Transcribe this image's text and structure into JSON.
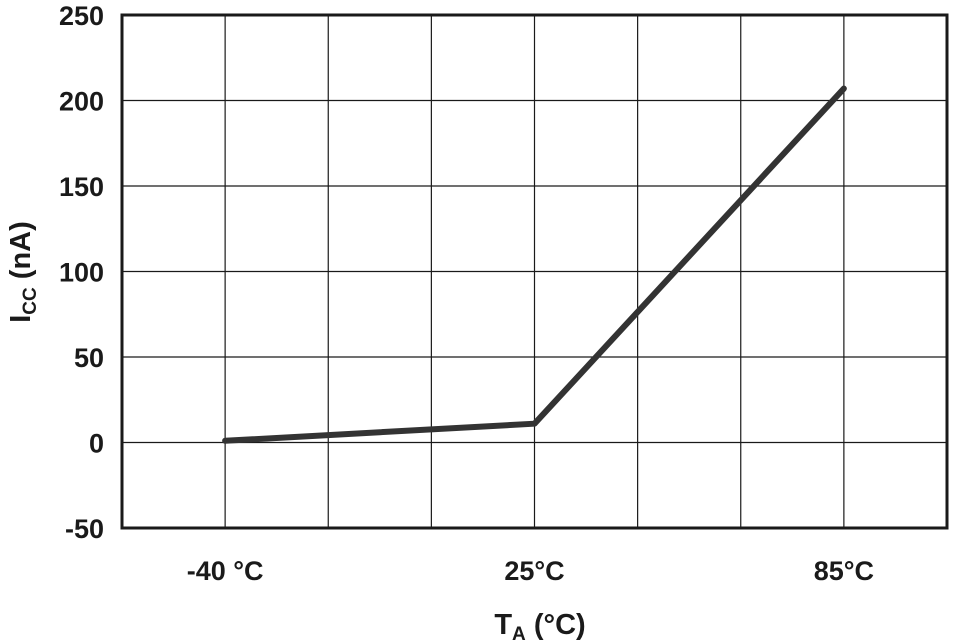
{
  "chart_data": {
    "type": "line",
    "x_categories": [
      "-40 °C",
      "",
      "",
      "25°C",
      "",
      "",
      "85°C"
    ],
    "x_labels": [
      {
        "text": "-40 °C",
        "index": 0
      },
      {
        "text": "25°C",
        "index": 3
      },
      {
        "text": "85°C",
        "index": 6
      }
    ],
    "series": [
      {
        "values": [
          [
            0,
            1
          ],
          [
            3,
            11
          ],
          [
            6,
            207
          ]
        ]
      }
    ],
    "y_ticks": [
      "250",
      "200",
      "150",
      "100",
      "50",
      "0",
      "-50"
    ],
    "ylim": [
      -50,
      250
    ],
    "xlabel": {
      "main": "T",
      "sub": "A",
      "rest": " (°C)"
    },
    "ylabel": {
      "main": "I",
      "sub": "CC",
      "rest": " (nA)"
    },
    "grid": true,
    "colors": {
      "line": "#333333",
      "grid": "#1a1a1a",
      "frame": "#1a1a1a"
    }
  }
}
